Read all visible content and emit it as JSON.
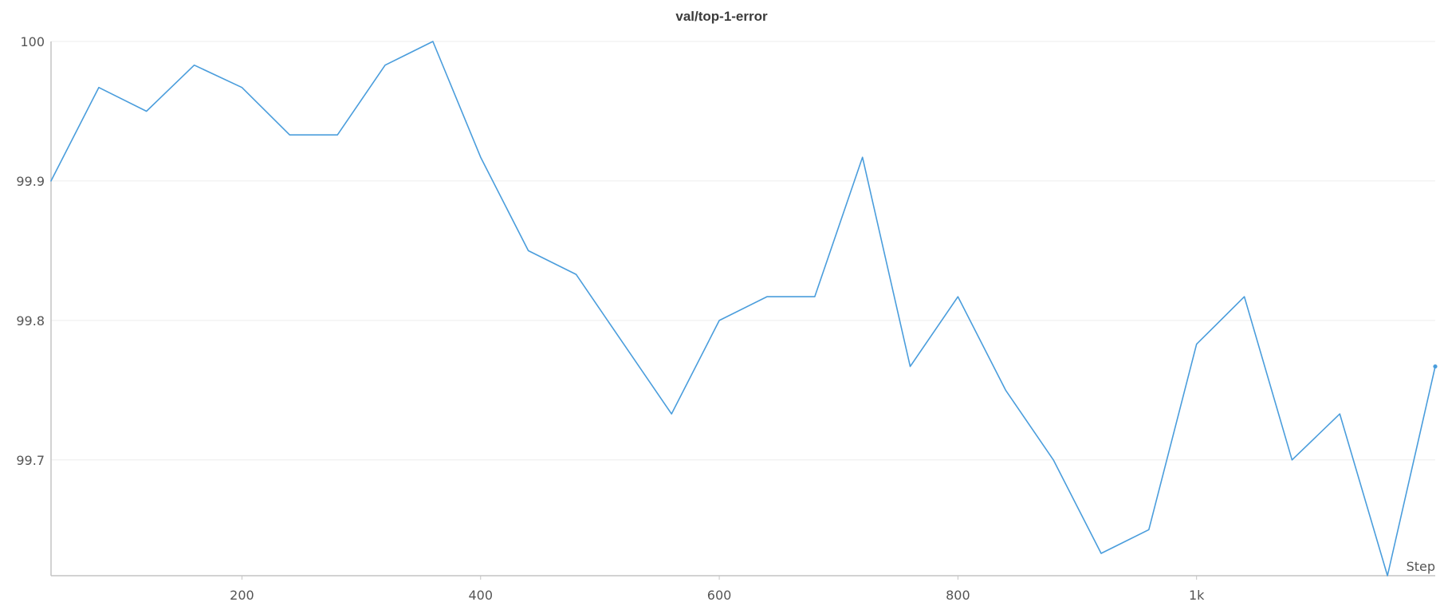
{
  "chart_data": {
    "type": "line",
    "title": "val/top-1-error",
    "xlabel": "Step",
    "ylabel": "",
    "xlim": [
      40,
      1200
    ],
    "ylim": [
      99.617,
      100
    ],
    "x_ticks": [
      200,
      400,
      600,
      800,
      1000
    ],
    "x_tick_labels": [
      "200",
      "400",
      "600",
      "800",
      "1k"
    ],
    "y_ticks": [
      99.7,
      99.8,
      99.9,
      100
    ],
    "y_tick_labels": [
      "99.7",
      "99.8",
      "99.9",
      "100"
    ],
    "grid": true,
    "legend": "none",
    "series": [
      {
        "color": "#4a9ddc",
        "x": [
          40,
          80,
          120,
          160,
          200,
          240,
          280,
          320,
          360,
          400,
          440,
          480,
          520,
          560,
          600,
          640,
          680,
          720,
          760,
          800,
          840,
          880,
          920,
          960,
          1000,
          1040,
          1080,
          1120,
          1160,
          1200
        ],
        "y": [
          99.9,
          99.967,
          99.95,
          99.983,
          99.967,
          99.933,
          99.933,
          99.983,
          100,
          99.917,
          99.85,
          99.833,
          99.783,
          99.733,
          99.8,
          99.817,
          99.817,
          99.917,
          99.767,
          99.817,
          99.75,
          99.7,
          99.633,
          99.65,
          99.783,
          99.817,
          99.7,
          99.733,
          99.617,
          99.767
        ]
      }
    ]
  }
}
